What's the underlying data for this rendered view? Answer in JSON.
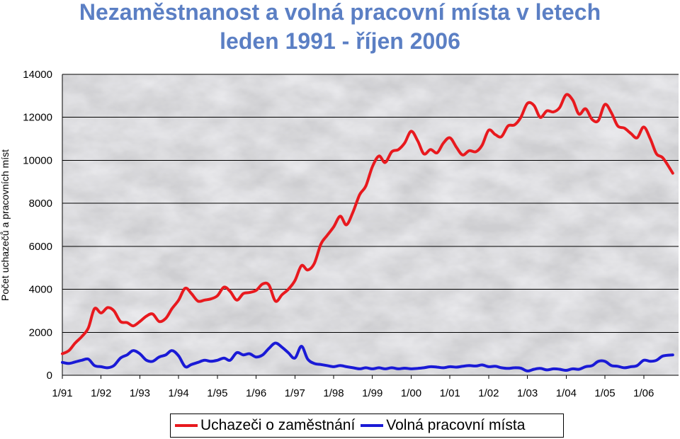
{
  "chart_data": {
    "type": "line",
    "title": [
      "Nezaměstnanost a volná pracovní místa v letech",
      "leden 1991 - říjen 2006"
    ],
    "ylabel": "Počet uchazečů a pracovních míst",
    "xlabel": "",
    "ylim": [
      0,
      14000
    ],
    "yticks": [
      0,
      2000,
      4000,
      6000,
      8000,
      10000,
      12000,
      14000
    ],
    "xtick_labels": [
      "1/91",
      "1/92",
      "1/93",
      "1/94",
      "1/95",
      "1/96",
      "1/97",
      "1/98",
      "1/99",
      "1/00",
      "1/01",
      "1/02",
      "1/03",
      "1/04",
      "1/05",
      "1/06"
    ],
    "grid": true,
    "legend_position": "bottom",
    "series": [
      {
        "name": "Uchazeči o zaměstnání",
        "color": "#e8191e",
        "points": [
          [
            1991.0,
            1000
          ],
          [
            1991.17,
            1150
          ],
          [
            1991.33,
            1500
          ],
          [
            1991.5,
            1800
          ],
          [
            1991.67,
            2200
          ],
          [
            1991.83,
            3100
          ],
          [
            1992.0,
            2900
          ],
          [
            1992.17,
            3150
          ],
          [
            1992.33,
            3000
          ],
          [
            1992.5,
            2500
          ],
          [
            1992.67,
            2450
          ],
          [
            1992.83,
            2300
          ],
          [
            1993.0,
            2500
          ],
          [
            1993.17,
            2750
          ],
          [
            1993.33,
            2850
          ],
          [
            1993.5,
            2500
          ],
          [
            1993.67,
            2650
          ],
          [
            1993.83,
            3100
          ],
          [
            1994.0,
            3500
          ],
          [
            1994.17,
            4050
          ],
          [
            1994.33,
            3800
          ],
          [
            1994.5,
            3450
          ],
          [
            1994.67,
            3500
          ],
          [
            1994.83,
            3550
          ],
          [
            1995.0,
            3700
          ],
          [
            1995.17,
            4100
          ],
          [
            1995.33,
            3900
          ],
          [
            1995.5,
            3500
          ],
          [
            1995.67,
            3800
          ],
          [
            1995.83,
            3850
          ],
          [
            1996.0,
            3950
          ],
          [
            1996.17,
            4250
          ],
          [
            1996.33,
            4200
          ],
          [
            1996.5,
            3450
          ],
          [
            1996.67,
            3750
          ],
          [
            1996.83,
            4000
          ],
          [
            1997.0,
            4400
          ],
          [
            1997.17,
            5100
          ],
          [
            1997.33,
            4900
          ],
          [
            1997.5,
            5200
          ],
          [
            1997.67,
            6100
          ],
          [
            1997.83,
            6500
          ],
          [
            1998.0,
            6900
          ],
          [
            1998.17,
            7400
          ],
          [
            1998.33,
            7000
          ],
          [
            1998.5,
            7600
          ],
          [
            1998.67,
            8400
          ],
          [
            1998.83,
            8800
          ],
          [
            1999.0,
            9700
          ],
          [
            1999.17,
            10200
          ],
          [
            1999.33,
            9900
          ],
          [
            1999.5,
            10400
          ],
          [
            1999.67,
            10500
          ],
          [
            1999.83,
            10800
          ],
          [
            2000.0,
            11350
          ],
          [
            2000.17,
            10900
          ],
          [
            2000.33,
            10300
          ],
          [
            2000.5,
            10500
          ],
          [
            2000.67,
            10350
          ],
          [
            2000.83,
            10800
          ],
          [
            2001.0,
            11050
          ],
          [
            2001.17,
            10600
          ],
          [
            2001.33,
            10250
          ],
          [
            2001.5,
            10450
          ],
          [
            2001.67,
            10400
          ],
          [
            2001.83,
            10700
          ],
          [
            2002.0,
            11400
          ],
          [
            2002.17,
            11200
          ],
          [
            2002.33,
            11100
          ],
          [
            2002.5,
            11600
          ],
          [
            2002.67,
            11650
          ],
          [
            2002.83,
            12000
          ],
          [
            2003.0,
            12650
          ],
          [
            2003.17,
            12550
          ],
          [
            2003.33,
            12000
          ],
          [
            2003.5,
            12300
          ],
          [
            2003.67,
            12250
          ],
          [
            2003.83,
            12450
          ],
          [
            2004.0,
            13050
          ],
          [
            2004.17,
            12800
          ],
          [
            2004.33,
            12150
          ],
          [
            2004.5,
            12400
          ],
          [
            2004.67,
            11900
          ],
          [
            2004.83,
            11850
          ],
          [
            2005.0,
            12600
          ],
          [
            2005.17,
            12200
          ],
          [
            2005.33,
            11600
          ],
          [
            2005.5,
            11500
          ],
          [
            2005.67,
            11250
          ],
          [
            2005.83,
            11050
          ],
          [
            2006.0,
            11550
          ],
          [
            2006.17,
            11000
          ],
          [
            2006.33,
            10300
          ],
          [
            2006.5,
            10100
          ],
          [
            2006.75,
            9400
          ]
        ]
      },
      {
        "name": "Volná pracovní místa",
        "color": "#1a1ad6",
        "points": [
          [
            1991.0,
            600
          ],
          [
            1991.17,
            550
          ],
          [
            1991.33,
            620
          ],
          [
            1991.5,
            700
          ],
          [
            1991.67,
            750
          ],
          [
            1991.83,
            450
          ],
          [
            1992.0,
            400
          ],
          [
            1992.17,
            350
          ],
          [
            1992.33,
            450
          ],
          [
            1992.5,
            800
          ],
          [
            1992.67,
            950
          ],
          [
            1992.83,
            1150
          ],
          [
            1993.0,
            1000
          ],
          [
            1993.17,
            700
          ],
          [
            1993.33,
            650
          ],
          [
            1993.5,
            850
          ],
          [
            1993.67,
            950
          ],
          [
            1993.83,
            1150
          ],
          [
            1994.0,
            900
          ],
          [
            1994.17,
            400
          ],
          [
            1994.33,
            500
          ],
          [
            1994.5,
            600
          ],
          [
            1994.67,
            700
          ],
          [
            1994.83,
            650
          ],
          [
            1995.0,
            700
          ],
          [
            1995.17,
            800
          ],
          [
            1995.33,
            700
          ],
          [
            1995.5,
            1050
          ],
          [
            1995.67,
            950
          ],
          [
            1995.83,
            1000
          ],
          [
            1996.0,
            850
          ],
          [
            1996.17,
            950
          ],
          [
            1996.33,
            1250
          ],
          [
            1996.5,
            1500
          ],
          [
            1996.67,
            1300
          ],
          [
            1996.83,
            1050
          ],
          [
            1997.0,
            800
          ],
          [
            1997.17,
            1350
          ],
          [
            1997.33,
            750
          ],
          [
            1997.5,
            550
          ],
          [
            1997.67,
            500
          ],
          [
            1997.83,
            450
          ],
          [
            1998.0,
            400
          ],
          [
            1998.17,
            450
          ],
          [
            1998.33,
            400
          ],
          [
            1998.5,
            350
          ],
          [
            1998.67,
            300
          ],
          [
            1998.83,
            350
          ],
          [
            1999.0,
            300
          ],
          [
            1999.17,
            350
          ],
          [
            1999.33,
            300
          ],
          [
            1999.5,
            350
          ],
          [
            1999.67,
            300
          ],
          [
            1999.83,
            330
          ],
          [
            2000.0,
            300
          ],
          [
            2000.17,
            320
          ],
          [
            2000.33,
            350
          ],
          [
            2000.5,
            400
          ],
          [
            2000.67,
            380
          ],
          [
            2000.83,
            350
          ],
          [
            2001.0,
            400
          ],
          [
            2001.17,
            380
          ],
          [
            2001.33,
            420
          ],
          [
            2001.5,
            450
          ],
          [
            2001.67,
            430
          ],
          [
            2001.83,
            480
          ],
          [
            2002.0,
            400
          ],
          [
            2002.17,
            420
          ],
          [
            2002.33,
            350
          ],
          [
            2002.5,
            320
          ],
          [
            2002.67,
            350
          ],
          [
            2002.83,
            330
          ],
          [
            2003.0,
            200
          ],
          [
            2003.17,
            280
          ],
          [
            2003.33,
            320
          ],
          [
            2003.5,
            250
          ],
          [
            2003.67,
            300
          ],
          [
            2003.83,
            280
          ],
          [
            2004.0,
            230
          ],
          [
            2004.17,
            300
          ],
          [
            2004.33,
            280
          ],
          [
            2004.5,
            400
          ],
          [
            2004.67,
            450
          ],
          [
            2004.83,
            650
          ],
          [
            2005.0,
            650
          ],
          [
            2005.17,
            450
          ],
          [
            2005.33,
            420
          ],
          [
            2005.5,
            350
          ],
          [
            2005.67,
            400
          ],
          [
            2005.83,
            450
          ],
          [
            2006.0,
            700
          ],
          [
            2006.17,
            650
          ],
          [
            2006.33,
            700
          ],
          [
            2006.5,
            900
          ],
          [
            2006.75,
            950
          ]
        ]
      }
    ]
  }
}
